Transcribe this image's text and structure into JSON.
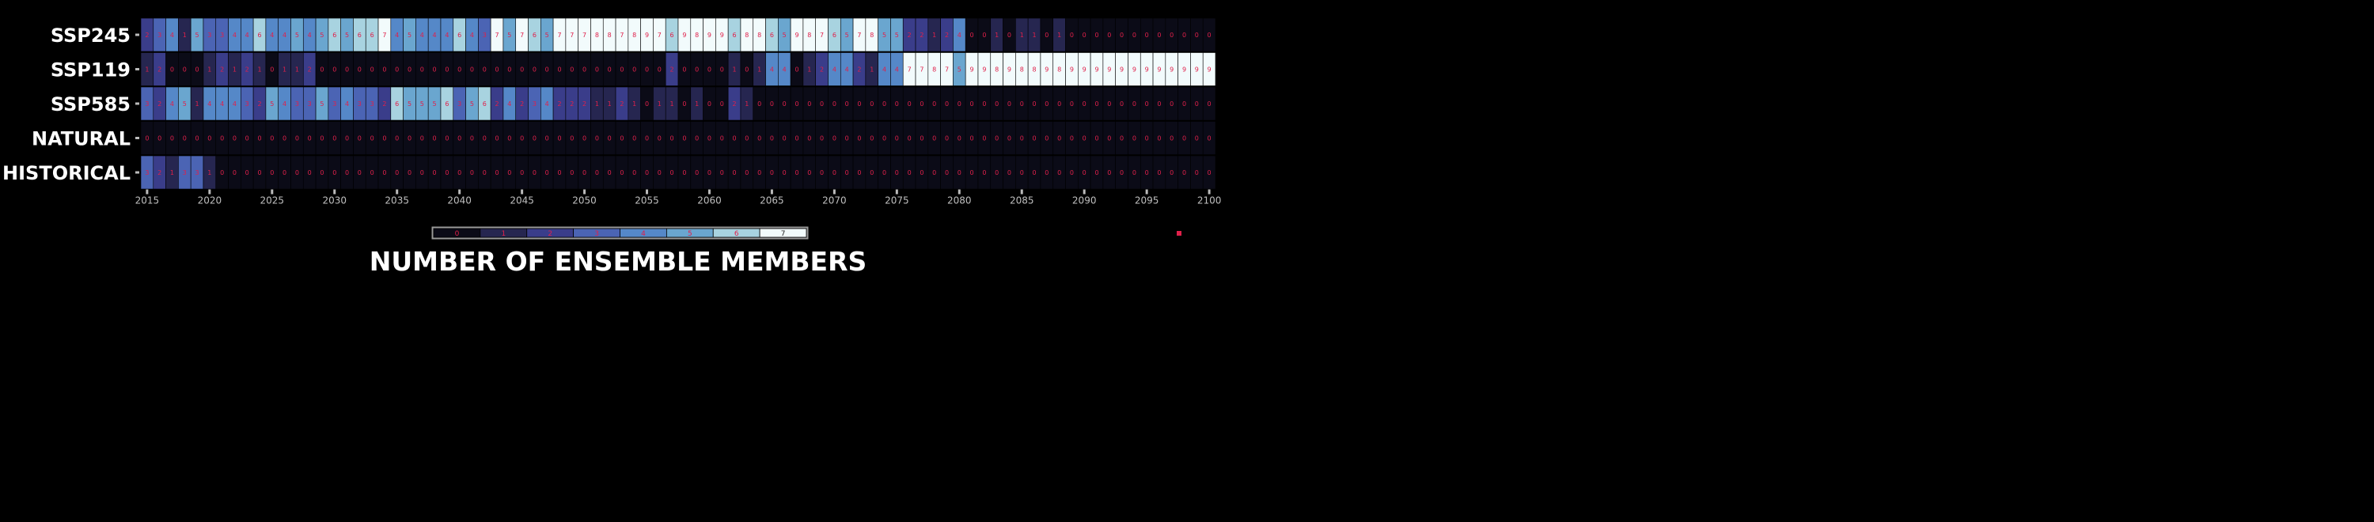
{
  "chart_data": {
    "type": "heatmap",
    "title": "NUMBER OF ENSEMBLE MEMBERS",
    "rows": [
      "SSP245",
      "SSP119",
      "SSP585",
      "NATURAL",
      "HISTORICAL"
    ],
    "x": [
      2015,
      2016,
      2017,
      2018,
      2019,
      2020,
      2021,
      2022,
      2023,
      2024,
      2025,
      2026,
      2027,
      2028,
      2029,
      2030,
      2031,
      2032,
      2033,
      2034,
      2035,
      2036,
      2037,
      2038,
      2039,
      2040,
      2041,
      2042,
      2043,
      2044,
      2045,
      2046,
      2047,
      2048,
      2049,
      2050,
      2051,
      2052,
      2053,
      2054,
      2055,
      2056,
      2057,
      2058,
      2059,
      2060,
      2061,
      2062,
      2063,
      2064,
      2065,
      2066,
      2067,
      2068,
      2069,
      2070,
      2071,
      2072,
      2073,
      2074,
      2075,
      2076,
      2077,
      2078,
      2079,
      2080,
      2081,
      2082,
      2083,
      2084,
      2085,
      2086,
      2087,
      2088,
      2089,
      2090,
      2091,
      2092,
      2093,
      2094,
      2095,
      2096,
      2097,
      2098,
      2099,
      2100
    ],
    "xticks": [
      2015,
      2020,
      2025,
      2030,
      2035,
      2040,
      2045,
      2050,
      2055,
      2060,
      2065,
      2070,
      2075,
      2080,
      2085,
      2090,
      2095,
      2100
    ],
    "values": [
      [
        2,
        3,
        4,
        1,
        5,
        3,
        3,
        4,
        4,
        6,
        4,
        4,
        5,
        4,
        5,
        6,
        5,
        6,
        6,
        7,
        4,
        5,
        4,
        4,
        4,
        6,
        4,
        3,
        7,
        5,
        7,
        6,
        5,
        7,
        7,
        7,
        8,
        8,
        7,
        8,
        9,
        7,
        6,
        9,
        8,
        9,
        9,
        6,
        8,
        8,
        6,
        5,
        9,
        8,
        7,
        6,
        5,
        7,
        8,
        5,
        5,
        2,
        2,
        1,
        2,
        4,
        0,
        0,
        1,
        0,
        1,
        1,
        0,
        1,
        0,
        0,
        0,
        0,
        0,
        0,
        0,
        0,
        0,
        0,
        0,
        0
      ],
      [
        1,
        2,
        0,
        0,
        0,
        1,
        2,
        1,
        2,
        1,
        0,
        1,
        1,
        2,
        0,
        0,
        0,
        0,
        0,
        0,
        0,
        0,
        0,
        0,
        0,
        0,
        0,
        0,
        0,
        0,
        0,
        0,
        0,
        0,
        0,
        0,
        0,
        0,
        0,
        0,
        0,
        0,
        2,
        0,
        0,
        0,
        0,
        1,
        0,
        1,
        4,
        4,
        0,
        1,
        2,
        4,
        4,
        2,
        1,
        4,
        4,
        7,
        7,
        8,
        7,
        5,
        9,
        9,
        8,
        9,
        8,
        8,
        9,
        8,
        9,
        9,
        9,
        9,
        9,
        9,
        9,
        9,
        9,
        9,
        9,
        9
      ],
      [
        3,
        2,
        4,
        5,
        1,
        4,
        4,
        4,
        3,
        2,
        5,
        4,
        3,
        3,
        5,
        3,
        4,
        3,
        3,
        2,
        6,
        5,
        5,
        5,
        6,
        3,
        5,
        6,
        2,
        4,
        2,
        3,
        4,
        2,
        2,
        2,
        1,
        1,
        2,
        1,
        0,
        1,
        1,
        0,
        1,
        0,
        0,
        2,
        1,
        0,
        0,
        0,
        0,
        0,
        0,
        0,
        0,
        0,
        0,
        0,
        0,
        0,
        0,
        0,
        0,
        0,
        0,
        0,
        0,
        0,
        0,
        0,
        0,
        0,
        0,
        0,
        0,
        0,
        0,
        0,
        0,
        0,
        0,
        0,
        0,
        0
      ],
      [
        0,
        0,
        0,
        0,
        0,
        0,
        0,
        0,
        0,
        0,
        0,
        0,
        0,
        0,
        0,
        0,
        0,
        0,
        0,
        0,
        0,
        0,
        0,
        0,
        0,
        0,
        0,
        0,
        0,
        0,
        0,
        0,
        0,
        0,
        0,
        0,
        0,
        0,
        0,
        0,
        0,
        0,
        0,
        0,
        0,
        0,
        0,
        0,
        0,
        0,
        0,
        0,
        0,
        0,
        0,
        0,
        0,
        0,
        0,
        0,
        0,
        0,
        0,
        0,
        0,
        0,
        0,
        0,
        0,
        0,
        0,
        0,
        0,
        0,
        0,
        0,
        0,
        0,
        0,
        0,
        0,
        0,
        0,
        0,
        0,
        0
      ],
      [
        3,
        2,
        1,
        3,
        3,
        1,
        0,
        0,
        0,
        0,
        0,
        0,
        0,
        0,
        0,
        0,
        0,
        0,
        0,
        0,
        0,
        0,
        0,
        0,
        0,
        0,
        0,
        0,
        0,
        0,
        0,
        0,
        0,
        0,
        0,
        0,
        0,
        0,
        0,
        0,
        0,
        0,
        0,
        0,
        0,
        0,
        0,
        0,
        0,
        0,
        0,
        0,
        0,
        0,
        0,
        0,
        0,
        0,
        0,
        0,
        0,
        0,
        0,
        0,
        0,
        0,
        0,
        0,
        0,
        0,
        0,
        0,
        0,
        0,
        0,
        0,
        0,
        0,
        0,
        0,
        0,
        0,
        0,
        0,
        0,
        0
      ]
    ],
    "colorbar": {
      "ticks": [
        "0",
        "1",
        "2",
        "3",
        "4",
        "5",
        "6",
        "7"
      ],
      "colors": [
        "#0b0b17",
        "#262650",
        "#3a3d8a",
        "#4b64b4",
        "#5588c8",
        "#6aa6cf",
        "#a8d3e0",
        "#f2fbfc"
      ]
    },
    "text_color": "#e0204a"
  }
}
